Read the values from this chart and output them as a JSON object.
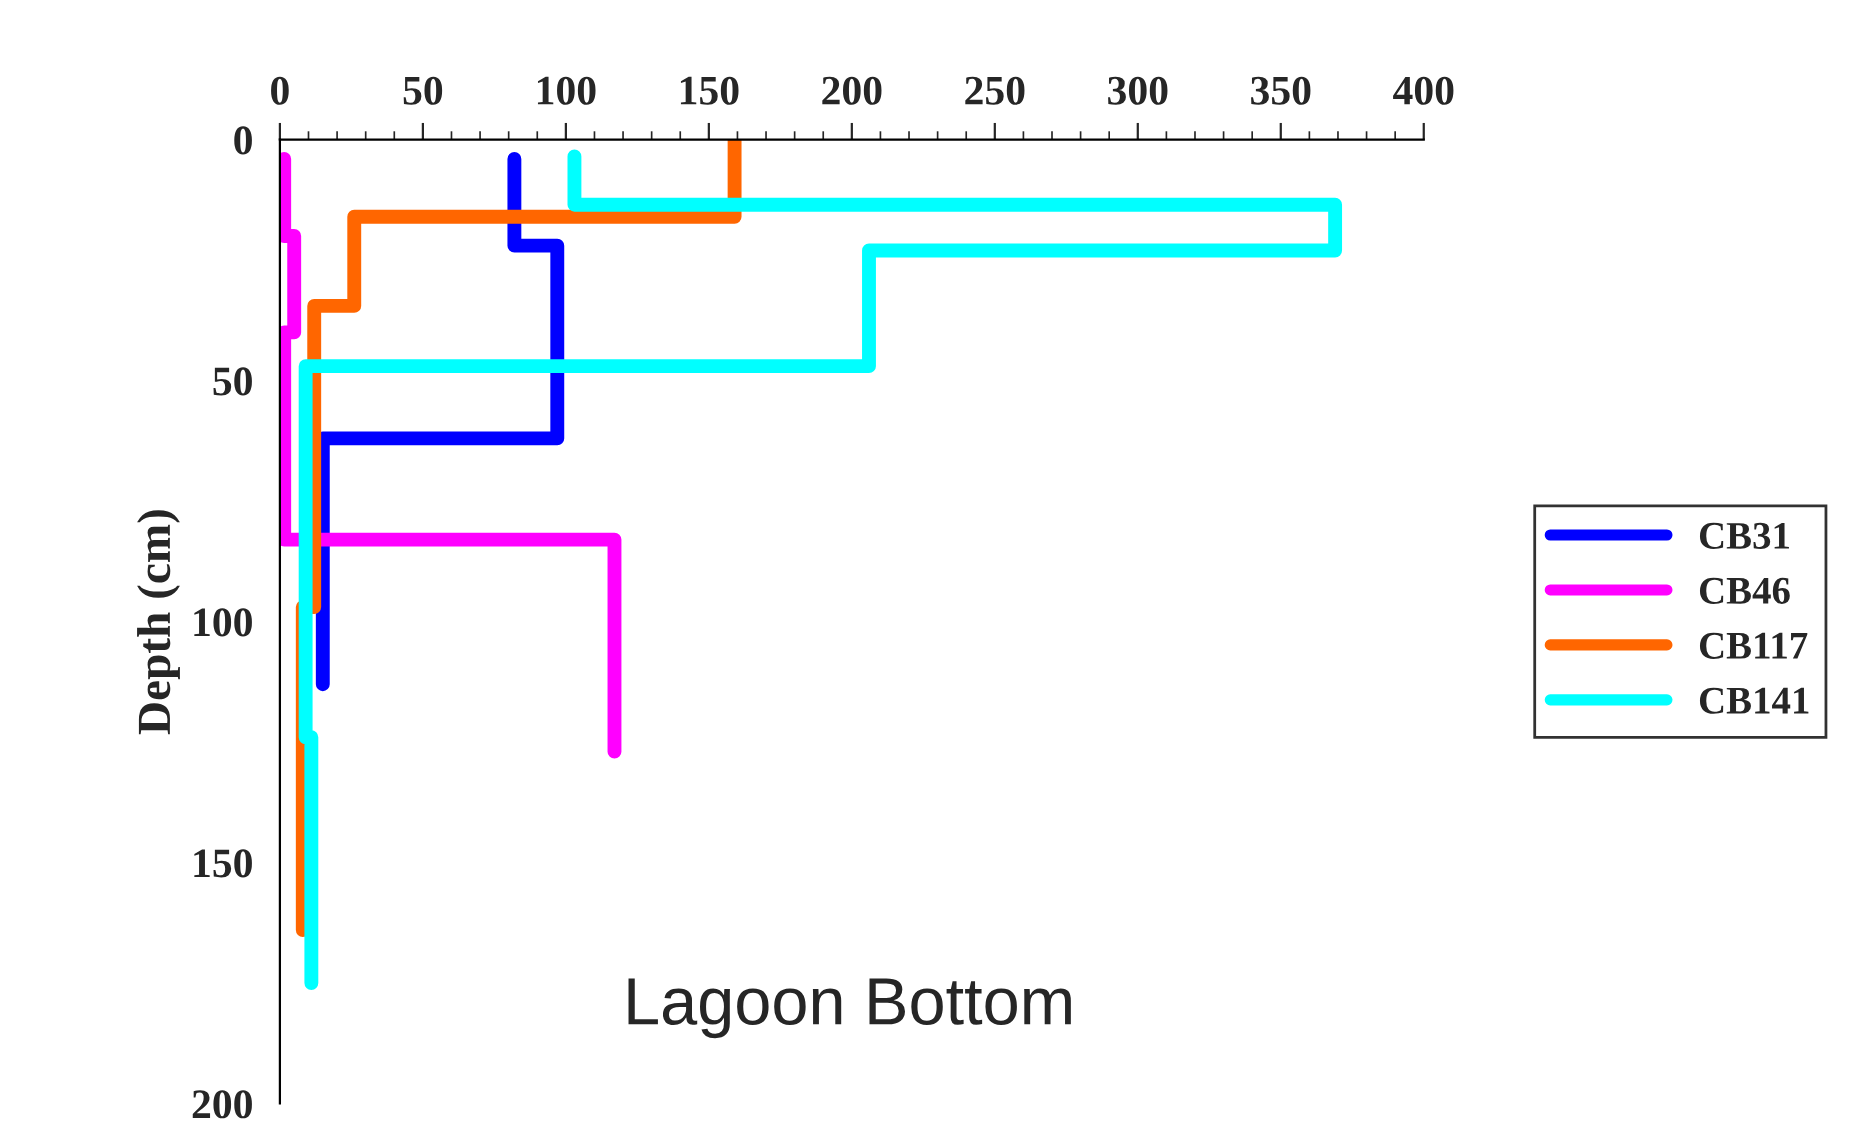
{
  "chart_data": {
    "type": "line",
    "ylabel": "Depth (cm)",
    "xlim": [
      0,
      400
    ],
    "xticks": [
      0,
      50,
      100,
      150,
      200,
      250,
      300,
      350,
      400
    ],
    "ylim": [
      200,
      0
    ],
    "yticks": [
      0,
      50,
      100,
      150,
      200
    ],
    "grid": false,
    "legend": "right",
    "line_style": "solid",
    "marker": "none",
    "annotations": [
      "Lagoon Bottom"
    ],
    "series": [
      {
        "name": "CB31",
        "color": "#0000ff",
        "x": [
          82,
          82,
          97,
          97,
          15,
          15
        ],
        "values": [
          4,
          22,
          22,
          62,
          62,
          113
        ]
      },
      {
        "name": "CB46",
        "color": "#ff00ff",
        "x": [
          1.5,
          1.5,
          5,
          5,
          1.5,
          1.5,
          117,
          117
        ],
        "values": [
          4,
          20,
          20,
          40,
          40,
          83,
          83,
          127
        ]
      },
      {
        "name": "CB117",
        "color": "#ff6600",
        "x": [
          159,
          159,
          26,
          26,
          12,
          12,
          8,
          8
        ],
        "values": [
          0,
          16,
          16,
          34.5,
          34.5,
          97,
          97,
          164
        ]
      },
      {
        "name": "CB141",
        "color": "#00ffff",
        "x": [
          103,
          103,
          369,
          369,
          206,
          206,
          9,
          9,
          11,
          11
        ],
        "values": [
          3.5,
          13.5,
          13.5,
          23,
          23,
          47,
          47,
          124,
          124,
          175
        ]
      }
    ]
  }
}
